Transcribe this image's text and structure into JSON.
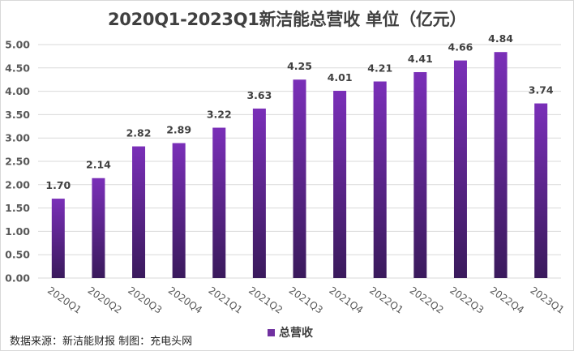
{
  "chart_data": {
    "type": "bar",
    "title": "2020Q1-2023Q1新洁能总营收 单位（亿元）",
    "categories": [
      "2020Q1",
      "2020Q2",
      "2020Q3",
      "2020Q4",
      "2021Q1",
      "2021Q2",
      "2021Q3",
      "2021Q4",
      "2022Q1",
      "2022Q2",
      "2022Q3",
      "2022Q4",
      "2023Q1"
    ],
    "series": [
      {
        "name": "总营收",
        "values": [
          1.7,
          2.14,
          2.82,
          2.89,
          3.22,
          3.63,
          4.25,
          4.01,
          4.21,
          4.41,
          4.66,
          4.84,
          3.74
        ]
      }
    ],
    "data_labels": [
      "1.70",
      "2.14",
      "2.82",
      "2.89",
      "3.22",
      "3.63",
      "4.25",
      "4.01",
      "4.21",
      "4.41",
      "4.66",
      "4.84",
      "3.74"
    ],
    "ylim": [
      0,
      5
    ],
    "yticks": [
      "0.00",
      "0.50",
      "1.00",
      "1.50",
      "2.00",
      "2.50",
      "3.00",
      "3.50",
      "4.00",
      "4.50",
      "5.00"
    ],
    "xlabel": "",
    "ylabel": "",
    "grid": true,
    "legend": "bottom",
    "colors": {
      "bar_top": "#7a2fb8",
      "bar_bottom": "#3a1a5c",
      "grid": "#d9d9d9"
    }
  },
  "footer": {
    "source": "数据来源：新洁能财报 制图：充电头网"
  }
}
